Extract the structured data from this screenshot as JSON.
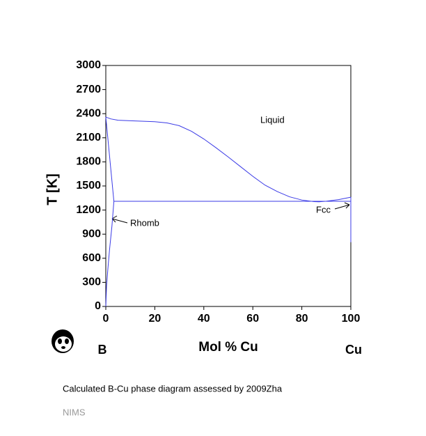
{
  "chart_data": {
    "type": "line",
    "ylabel": "T [K]",
    "xlabel": "Mol % Cu",
    "components": [
      "B",
      "Cu"
    ],
    "annotations": [
      "Liquid",
      "Rhomb",
      "Fcc"
    ],
    "caption": "Calculated B-Cu phase diagram assessed by 2009Zha",
    "source": "NIMS",
    "xlim": [
      0,
      100
    ],
    "xticks": [
      0,
      20,
      40,
      60,
      80,
      100
    ],
    "ylim": [
      0,
      3000
    ],
    "yticks": [
      0,
      300,
      600,
      900,
      1200,
      1500,
      1800,
      2100,
      2400,
      2700,
      3000
    ],
    "series": [
      {
        "color": "#3a3ae6",
        "x": [
          0,
          2,
          5,
          10,
          20,
          25,
          30,
          35,
          40,
          45,
          50,
          55,
          60,
          65,
          70,
          75,
          80,
          85,
          87,
          90,
          95,
          100
        ],
        "values": [
          2358,
          2335,
          2318,
          2312,
          2300,
          2285,
          2250,
          2180,
          2085,
          1975,
          1860,
          1740,
          1620,
          1510,
          1430,
          1365,
          1325,
          1305,
          1303,
          1310,
          1330,
          1360
        ]
      },
      {
        "color": "#3a3ae6",
        "x": [
          3.3,
          100
        ],
        "values": [
          1309,
          1309
        ]
      },
      {
        "color": "#3a3ae6",
        "x": [
          0,
          3.3,
          2.5,
          1.5,
          0.8,
          0.3,
          0
        ],
        "values": [
          2358,
          1309,
          1000,
          700,
          450,
          250,
          0
        ]
      },
      {
        "color": "#3a3ae6",
        "x": [
          100,
          100
        ],
        "values": [
          1360,
          800
        ]
      }
    ]
  }
}
